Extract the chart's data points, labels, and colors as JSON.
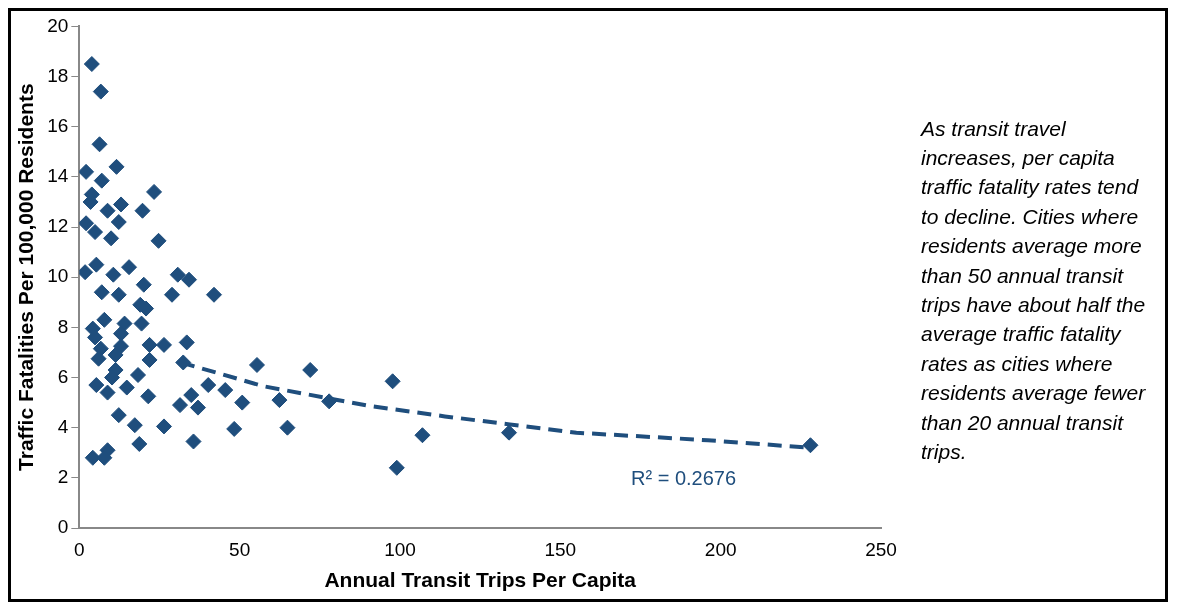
{
  "chart_data": {
    "type": "scatter",
    "xlabel": "Annual Transit Trips Per Capita",
    "ylabel": "Traffic Fatalities Per 100,000 Residents",
    "xlim": [
      0,
      250
    ],
    "xticks": [
      0,
      50,
      100,
      150,
      200,
      250
    ],
    "ylim": [
      0,
      20
    ],
    "yticks": [
      0,
      2,
      4,
      6,
      8,
      10,
      12,
      14,
      16,
      18,
      20
    ],
    "grid": false,
    "legend": false,
    "marker": "diamond",
    "series": [
      {
        "color": "#1f4e7d",
        "x": [
          3.9,
          6.7,
          6.3,
          2.1,
          11.6,
          7,
          23.3,
          3.9,
          3.5,
          8.8,
          13,
          19.7,
          12.3,
          2.1,
          4.9,
          9.9,
          24.7,
          15.5,
          10.6,
          1.8,
          5.3,
          7,
          12.3,
          20.1,
          19,
          20.8,
          4.2,
          7.8,
          14.1,
          19.4,
          4.9,
          13,
          6.7,
          13,
          11.3,
          6,
          11.3,
          10.2,
          28.9,
          42,
          30.7,
          34.2,
          21.9,
          26.4,
          33.5,
          32.4,
          21.9,
          18.3,
          5.3,
          8.8,
          14.8,
          21.5,
          31.4,
          34.9,
          37,
          40.2,
          45.5,
          50.8,
          55.4,
          72,
          97.7,
          62.4,
          77.9,
          48.3,
          64.9,
          107,
          134,
          228,
          99,
          12.3,
          17.3,
          26.4,
          18.7,
          35.6,
          4.2,
          8.8,
          7.8
        ],
        "values": [
          18.5,
          17.4,
          15.3,
          14.2,
          14.4,
          13.85,
          13.4,
          13.3,
          13.0,
          12.65,
          12.9,
          12.65,
          12.2,
          12.15,
          11.8,
          11.55,
          11.45,
          10.4,
          10.1,
          10.2,
          10.5,
          9.4,
          9.3,
          9.7,
          8.9,
          8.75,
          7.95,
          8.3,
          8.15,
          8.15,
          7.6,
          7.75,
          7.15,
          7.25,
          6.9,
          6.75,
          6.3,
          6.0,
          9.3,
          9.3,
          10.1,
          9.9,
          7.3,
          7.3,
          7.4,
          6.6,
          6.7,
          6.1,
          5.7,
          5.4,
          5.6,
          5.25,
          4.9,
          5.3,
          4.8,
          5.7,
          5.5,
          5.0,
          6.5,
          6.3,
          5.85,
          5.1,
          5.05,
          3.95,
          4.0,
          3.7,
          3.8,
          3.3,
          2.4,
          4.5,
          4.1,
          4.05,
          3.35,
          3.45,
          2.8,
          3.1,
          2.8
        ]
      },
      {
        "type": "line",
        "color": "#1f4e7d",
        "marker": "none",
        "line_style": "dashed",
        "x": [
          31.7,
          57.5,
          91.3,
          114,
          155,
          196,
          228
        ],
        "values": [
          6.6,
          5.65,
          4.85,
          4.45,
          3.8,
          3.5,
          3.2
        ]
      }
    ],
    "annotations": [
      "R² = 0.2676",
      "As transit travel increases, per capita traffic fatality rates tend to decline. Cities where residents average more than 50 annual transit trips have about half the average traffic fatality rates as cities where residents average fewer than 20 annual transit trips."
    ]
  }
}
